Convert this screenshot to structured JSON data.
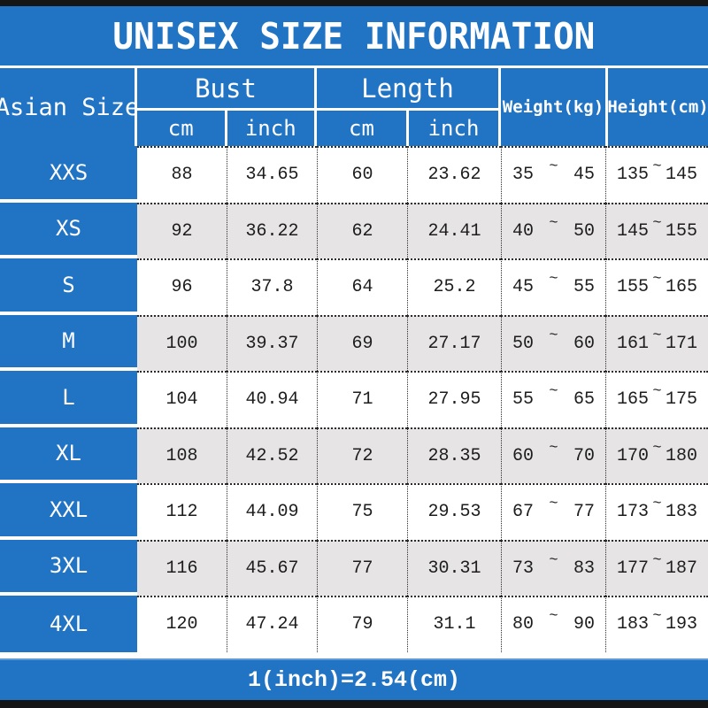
{
  "title": "UNISEX SIZE INFORMATION",
  "footer_note": "1(inch)=2.54(cm)",
  "range_separator": "~",
  "colors": {
    "header_blue": "#2173C4",
    "alt_row_gray": "#e6e4e5",
    "frame_bar_black": "#151515",
    "body_text": "#1d1d1d",
    "header_text": "#ffffff"
  },
  "table": {
    "corner_header": "Asian Size",
    "groups": [
      {
        "label": "Bust",
        "subcolumns": [
          "cm",
          "inch"
        ]
      },
      {
        "label": "Length",
        "subcolumns": [
          "cm",
          "inch"
        ]
      }
    ],
    "single_headers": [
      "Weight(kg)",
      "Height(cm)"
    ],
    "rows": [
      {
        "size": "XXS",
        "bust_cm": "88",
        "bust_inch": "34.65",
        "length_cm": "60",
        "length_inch": "23.62",
        "weight_min": "35",
        "weight_max": "45",
        "height_min": "135",
        "height_max": "145"
      },
      {
        "size": "XS",
        "bust_cm": "92",
        "bust_inch": "36.22",
        "length_cm": "62",
        "length_inch": "24.41",
        "weight_min": "40",
        "weight_max": "50",
        "height_min": "145",
        "height_max": "155"
      },
      {
        "size": "S",
        "bust_cm": "96",
        "bust_inch": "37.8",
        "length_cm": "64",
        "length_inch": "25.2",
        "weight_min": "45",
        "weight_max": "55",
        "height_min": "155",
        "height_max": "165"
      },
      {
        "size": "M",
        "bust_cm": "100",
        "bust_inch": "39.37",
        "length_cm": "69",
        "length_inch": "27.17",
        "weight_min": "50",
        "weight_max": "60",
        "height_min": "161",
        "height_max": "171"
      },
      {
        "size": "L",
        "bust_cm": "104",
        "bust_inch": "40.94",
        "length_cm": "71",
        "length_inch": "27.95",
        "weight_min": "55",
        "weight_max": "65",
        "height_min": "165",
        "height_max": "175"
      },
      {
        "size": "XL",
        "bust_cm": "108",
        "bust_inch": "42.52",
        "length_cm": "72",
        "length_inch": "28.35",
        "weight_min": "60",
        "weight_max": "70",
        "height_min": "170",
        "height_max": "180"
      },
      {
        "size": "XXL",
        "bust_cm": "112",
        "bust_inch": "44.09",
        "length_cm": "75",
        "length_inch": "29.53",
        "weight_min": "67",
        "weight_max": "77",
        "height_min": "173",
        "height_max": "183"
      },
      {
        "size": "3XL",
        "bust_cm": "116",
        "bust_inch": "45.67",
        "length_cm": "77",
        "length_inch": "30.31",
        "weight_min": "73",
        "weight_max": "83",
        "height_min": "177",
        "height_max": "187"
      },
      {
        "size": "4XL",
        "bust_cm": "120",
        "bust_inch": "47.24",
        "length_cm": "79",
        "length_inch": "31.1",
        "weight_min": "80",
        "weight_max": "90",
        "height_min": "183",
        "height_max": "193"
      }
    ]
  }
}
